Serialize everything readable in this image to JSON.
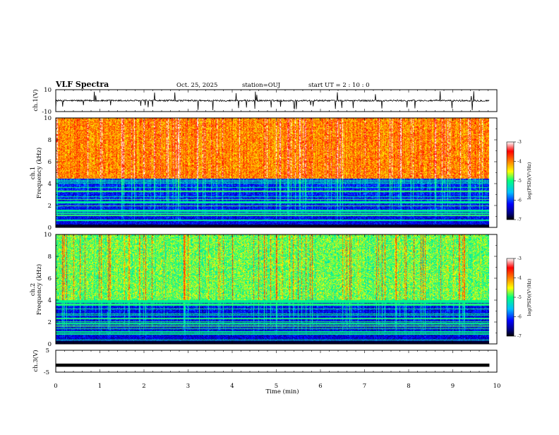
{
  "header": {
    "title": "VLF Spectra",
    "date": "Oct. 25, 2025",
    "station": "station=OUJ",
    "start": "start  UT =   2 : 10 : 0"
  },
  "panels": {
    "ch1_wave": {
      "ylabel": "ch.1(V)",
      "ticks": [
        "10",
        "-10"
      ],
      "ylim": [
        -10,
        10
      ]
    },
    "ch1_spec": {
      "ylabel_line1": "ch.1",
      "ylabel_line2": "Frequency  (kHz)",
      "ticks": [
        "0",
        "2",
        "4",
        "6",
        "8",
        "10"
      ],
      "ylim": [
        0,
        10
      ]
    },
    "ch2_spec": {
      "ylabel_line1": "ch.2",
      "ylabel_line2": "Frequency  (kHz)",
      "ticks": [
        "0",
        "2",
        "4",
        "6",
        "8",
        "10"
      ],
      "ylim": [
        0,
        10
      ]
    },
    "ch3_wave": {
      "ylabel": "ch.3(V)",
      "ticks": [
        "5",
        "-5"
      ],
      "ylim": [
        -5,
        5
      ]
    }
  },
  "colorbar": {
    "label": "log(PSD)(V²/Hz)",
    "ticks": [
      "-3",
      "-4",
      "-5",
      "-6",
      "-7"
    ],
    "range": [
      -7,
      -3
    ]
  },
  "chart_data": {
    "type": "heatmap",
    "title": "VLF Spectra",
    "xlabel": "Time  (min)",
    "xlim": [
      0,
      10
    ],
    "x_ticks": [
      "0",
      "1",
      "2",
      "3",
      "4",
      "5",
      "6",
      "7",
      "8",
      "9",
      "10"
    ],
    "data_end_min": 9.83,
    "series": [
      {
        "name": "ch.1(V)",
        "kind": "waveform",
        "baseline_v": 0,
        "noise_amplitude_v": 1.5,
        "spike_amplitude_v": 8
      },
      {
        "name": "ch.1 spectrogram",
        "kind": "spectrogram",
        "band_edge_khz": 4.5,
        "low_band_log_psd": -6.3,
        "high_band_log_psd": -4.2
      },
      {
        "name": "ch.2 spectrogram",
        "kind": "spectrogram",
        "band_edge_khz": 4,
        "low_band_log_psd": -6.4,
        "high_band_log_psd": -5.0
      },
      {
        "name": "ch.3(V)",
        "kind": "waveform",
        "baseline_v": -1.8,
        "noise_amplitude_v": 0.1
      }
    ],
    "colors": {
      "colormap": [
        "#000080",
        "#0000ff",
        "#00bfff",
        "#00ff80",
        "#ffff00",
        "#ff7f00",
        "#ff0000",
        "#ffffff"
      ]
    }
  }
}
